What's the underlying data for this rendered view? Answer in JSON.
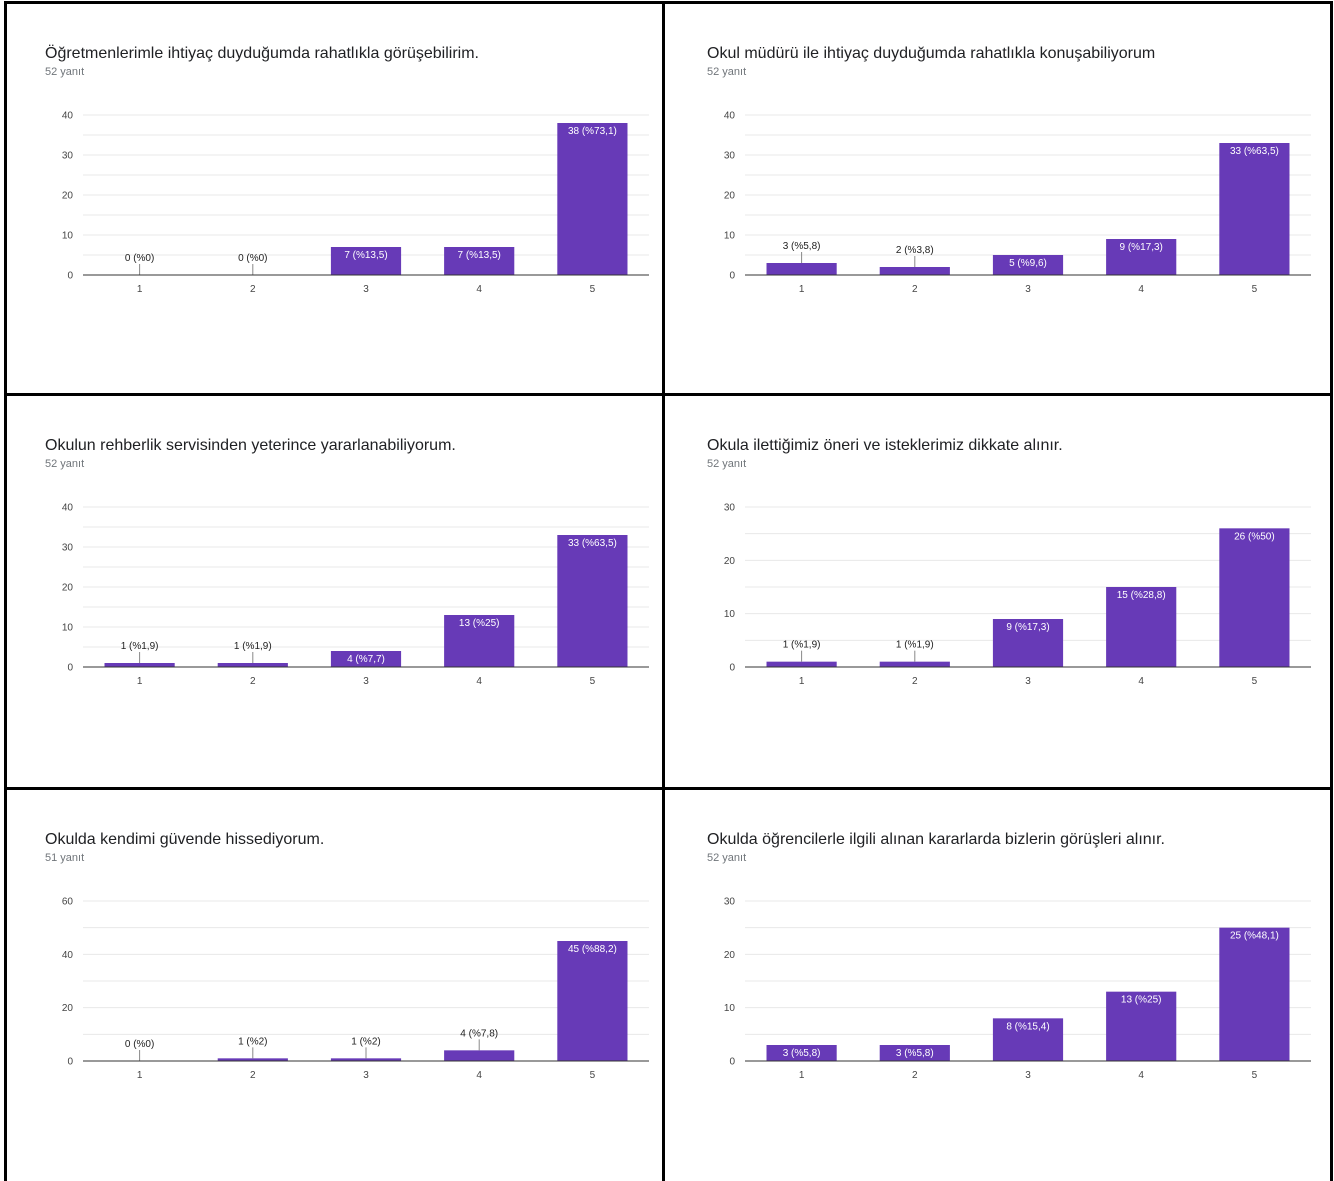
{
  "colors": {
    "bar": "#673ab7",
    "border": "#000000"
  },
  "chart_data": [
    {
      "type": "bar",
      "title": "Öğretmenlerimle ihtiyaç duyduğumda rahatlıkla görüşebilirim.",
      "subtitle": "52 yanıt",
      "categories": [
        "1",
        "2",
        "3",
        "4",
        "5"
      ],
      "values": [
        0,
        0,
        7,
        7,
        38
      ],
      "labels": [
        "0 (%0)",
        "0 (%0)",
        "7 (%13,5)",
        "7 (%13,5)",
        "38 (%73,1)"
      ],
      "yticks": [
        0,
        10,
        20,
        30,
        40
      ],
      "ylim": [
        0,
        40
      ],
      "grid": true
    },
    {
      "type": "bar",
      "title": "Okul müdürü ile ihtiyaç duyduğumda rahatlıkla konuşabiliyorum",
      "subtitle": "52 yanıt",
      "categories": [
        "1",
        "2",
        "3",
        "4",
        "5"
      ],
      "values": [
        3,
        2,
        5,
        9,
        33
      ],
      "labels": [
        "3 (%5,8)",
        "2 (%3,8)",
        "5 (%9,6)",
        "9 (%17,3)",
        "33 (%63,5)"
      ],
      "yticks": [
        0,
        10,
        20,
        30,
        40
      ],
      "ylim": [
        0,
        40
      ],
      "grid": true
    },
    {
      "type": "bar",
      "title": "Okulun rehberlik servisinden yeterince yararlanabiliyorum.",
      "subtitle": "52 yanıt",
      "categories": [
        "1",
        "2",
        "3",
        "4",
        "5"
      ],
      "values": [
        1,
        1,
        4,
        13,
        33
      ],
      "labels": [
        "1 (%1,9)",
        "1 (%1,9)",
        "4 (%7,7)",
        "13 (%25)",
        "33 (%63,5)"
      ],
      "yticks": [
        0,
        10,
        20,
        30,
        40
      ],
      "ylim": [
        0,
        40
      ],
      "grid": true
    },
    {
      "type": "bar",
      "title": "Okula ilettiğimiz öneri ve isteklerimiz dikkate alınır.",
      "subtitle": "52 yanıt",
      "categories": [
        "1",
        "2",
        "3",
        "4",
        "5"
      ],
      "values": [
        1,
        1,
        9,
        15,
        26
      ],
      "labels": [
        "1 (%1,9)",
        "1 (%1,9)",
        "9 (%17,3)",
        "15 (%28,8)",
        "26 (%50)"
      ],
      "yticks": [
        0,
        10,
        20,
        30
      ],
      "ylim": [
        0,
        30
      ],
      "grid": true
    },
    {
      "type": "bar",
      "title": "Okulda kendimi güvende hissediyorum.",
      "subtitle": "51 yanıt",
      "categories": [
        "1",
        "2",
        "3",
        "4",
        "5"
      ],
      "values": [
        0,
        1,
        1,
        4,
        45
      ],
      "labels": [
        "0 (%0)",
        "1 (%2)",
        "1 (%2)",
        "4 (%7,8)",
        "45 (%88,2)"
      ],
      "yticks": [
        0,
        20,
        40,
        60
      ],
      "ylim": [
        0,
        60
      ],
      "grid": true
    },
    {
      "type": "bar",
      "title": "Okulda öğrencilerle ilgili alınan kararlarda bizlerin görüşleri alınır.",
      "subtitle": "52 yanıt",
      "categories": [
        "1",
        "2",
        "3",
        "4",
        "5"
      ],
      "values": [
        3,
        3,
        8,
        13,
        25
      ],
      "labels": [
        "3 (%5,8)",
        "3 (%5,8)",
        "8 (%15,4)",
        "13 (%25)",
        "25 (%48,1)"
      ],
      "yticks": [
        0,
        10,
        20,
        30
      ],
      "ylim": [
        0,
        30
      ],
      "grid": true
    }
  ]
}
